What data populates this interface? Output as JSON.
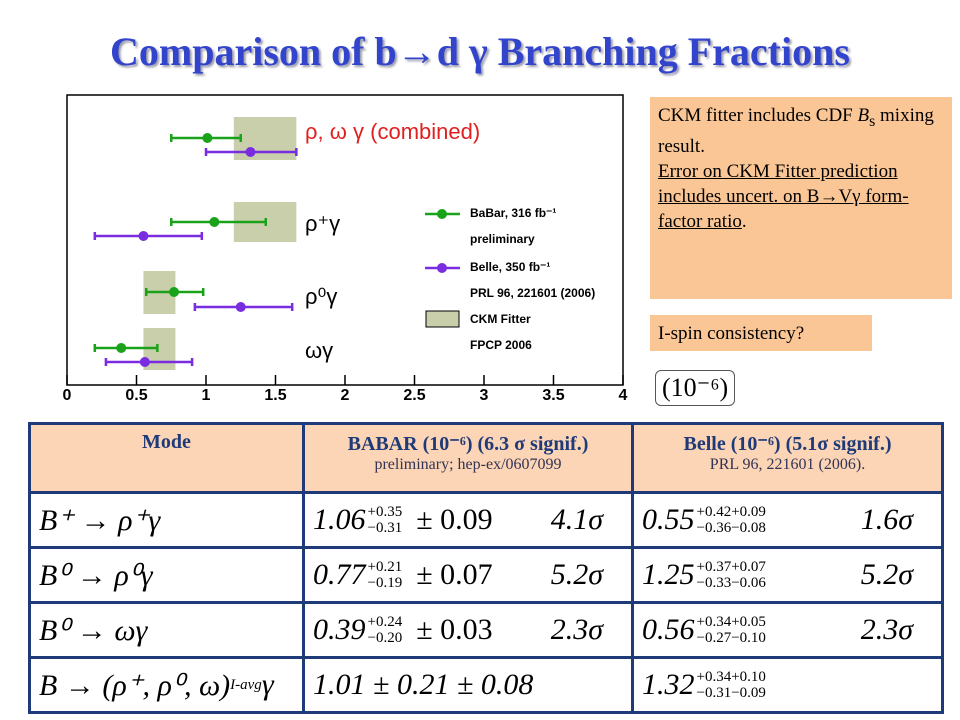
{
  "title": "Comparison of b→d γ Branching Fractions",
  "chart_data": {
    "type": "errorbar",
    "categories": [
      "ρ, ω γ (combined)",
      "ρ⁺γ",
      "ρ⁰γ",
      "ωγ"
    ],
    "category_colors": [
      "#e02020",
      "#000000",
      "#000000",
      "#000000"
    ],
    "series": [
      {
        "name": "BaBar, 316 fb⁻¹",
        "note": "preliminary",
        "color": "#1aa31a",
        "values": [
          1.01,
          1.06,
          0.77,
          0.39
        ],
        "lower": [
          0.75,
          0.75,
          0.57,
          0.2
        ],
        "upper": [
          1.25,
          1.43,
          0.98,
          0.65
        ]
      },
      {
        "name": "Belle, 350 fb⁻¹",
        "note": "PRL 96, 221601 (2006)",
        "color": "#7a2ce0",
        "values": [
          1.32,
          0.55,
          1.25,
          0.56
        ],
        "lower": [
          1.0,
          0.2,
          0.92,
          0.28
        ],
        "upper": [
          1.65,
          0.97,
          1.62,
          0.9
        ]
      }
    ],
    "band": {
      "name": "CKM Fitter",
      "note": "FPCP 2006",
      "color": "#c9cfab",
      "lower": [
        1.2,
        1.2,
        0.55,
        0.55
      ],
      "upper": [
        1.65,
        1.65,
        0.78,
        0.78
      ]
    },
    "xlim": [
      0,
      4
    ],
    "xticks": [
      0,
      0.5,
      1,
      1.5,
      2,
      2.5,
      3,
      3.5,
      4
    ]
  },
  "notes": {
    "line1": {
      "pre": "CKM fitter includes CDF ",
      "sym": "B",
      "sub": "s",
      "post": " mixing result."
    },
    "line2": "Error on CKM Fitter prediction includes uncert. on B→Vγ form-factor ratio",
    "line2_end": ".",
    "question": "I-spin consistency?",
    "unit": "(10⁻⁶)"
  },
  "table": {
    "header": {
      "mode": "Mode",
      "babar": "BABAR (10⁻⁶) (6.3 σ signif.)",
      "babar_sub": "preliminary;  hep-ex/0607099",
      "belle": "Belle  (10⁻⁶)   (5.1σ signif.)",
      "belle_sub": "PRL 96, 221601 (2006)."
    },
    "rows": [
      {
        "mode": "B⁺  →  ρ⁺γ",
        "babar": {
          "value": "1.06",
          "up": "+0.35",
          "down": "−0.31",
          "syst": "± 0.09",
          "signif": "4.1σ"
        },
        "belle": {
          "value": "0.55",
          "up": "+0.42+0.09",
          "down": "−0.36−0.08",
          "signif": "1.6σ"
        }
      },
      {
        "mode": "B⁰  →  ρ⁰γ",
        "babar": {
          "value": "0.77",
          "up": "+0.21",
          "down": "−0.19",
          "syst": "± 0.07",
          "signif": "5.2σ"
        },
        "belle": {
          "value": "1.25",
          "up": "+0.37+0.07",
          "down": "−0.33−0.06",
          "signif": "5.2σ"
        }
      },
      {
        "mode": "B⁰  →  ωγ",
        "babar": {
          "value": "0.39",
          "up": "+0.24",
          "down": "−0.20",
          "syst": "± 0.03",
          "signif": "2.3σ"
        },
        "belle": {
          "value": "0.56",
          "up": "+0.34+0.05",
          "down": "−0.27−0.10",
          "signif": "2.3σ"
        }
      },
      {
        "mode": "B → (ρ⁺, ρ⁰, ω)",
        "mode_sub": "I-avg",
        "mode_end": "γ",
        "babar": {
          "value": "1.01 ± 0.21 ± 0.08"
        },
        "belle": {
          "value": "1.32",
          "up": "+0.34+0.10",
          "down": "−0.31−0.09"
        }
      }
    ]
  }
}
